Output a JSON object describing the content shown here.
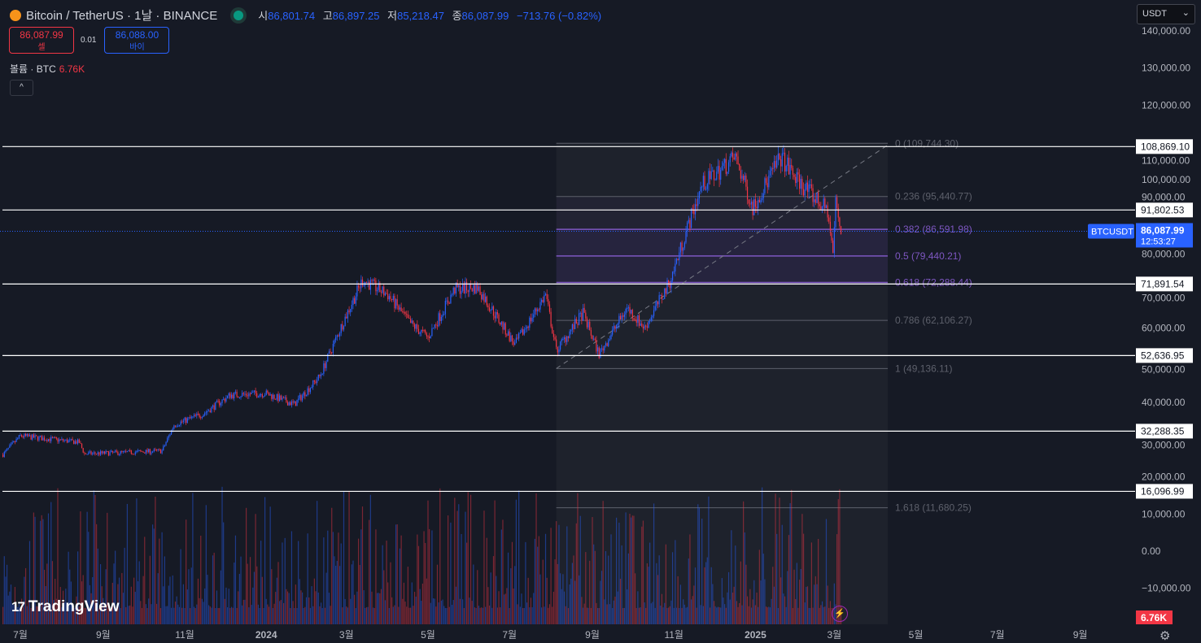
{
  "header": {
    "symbol": "Bitcoin / TetherUS · 1날 · BINANCE",
    "open_label": "시",
    "open": "86,801.74",
    "high_label": "고",
    "high": "86,897.25",
    "low_label": "저",
    "low": "85,218.47",
    "close_label": "종",
    "close": "86,087.99",
    "change": "−713.76 (−0.82%)"
  },
  "trade": {
    "sell_price": "86,087.99",
    "sell_label": "셀",
    "spread": "0.01",
    "buy_price": "86,088.00",
    "buy_label": "바이"
  },
  "volume": {
    "label": "볼륨 · BTC",
    "value": "6.76K",
    "collapse": "^"
  },
  "currency": {
    "value": "USDT",
    "chevron": "⌄"
  },
  "brand": {
    "name": "TradingView",
    "mark": "17"
  },
  "colors": {
    "up": "#2962ff",
    "down": "#f23645",
    "bg": "#161a25",
    "fib": "#7e57c2"
  },
  "icons": {
    "coin": "bitcoin-icon",
    "status": "market-open-dot",
    "bolt": "lightning-icon",
    "settings": "settings-icon"
  },
  "chart_data": {
    "type": "candlestick",
    "ylim": [
      -15000,
      145000
    ],
    "y_ticks": [
      140000,
      130000,
      120000,
      110000,
      100000,
      90000,
      80000,
      70000,
      60000,
      50000,
      40000,
      30000,
      20000,
      10000,
      0,
      -10000
    ],
    "y_tick_labels": [
      "140,000.00",
      "130,000.00",
      "120,000.00",
      "110,000.00",
      "100,000.00",
      "90,000.00",
      "80,000.00",
      "70,000.00",
      "60,000.00",
      "50,000.00",
      "40,000.00",
      "30,000.00",
      "20,000.00",
      "10,000.00",
      "0.00",
      "−10,000.00"
    ],
    "x_ticks": [
      {
        "date": "2023-07-01",
        "label": "7월"
      },
      {
        "date": "2023-09-01",
        "label": "9월"
      },
      {
        "date": "2023-11-01",
        "label": "11월"
      },
      {
        "date": "2024-01-01",
        "label": "2024"
      },
      {
        "date": "2024-03-01",
        "label": "3월"
      },
      {
        "date": "2024-05-01",
        "label": "5월"
      },
      {
        "date": "2024-07-01",
        "label": "7월"
      },
      {
        "date": "2024-09-01",
        "label": "9월"
      },
      {
        "date": "2024-11-01",
        "label": "11월"
      },
      {
        "date": "2025-01-01",
        "label": "2025"
      },
      {
        "date": "2025-03-01",
        "label": "3월"
      },
      {
        "date": "2025-05-01",
        "label": "5월"
      },
      {
        "date": "2025-07-01",
        "label": "7월"
      },
      {
        "date": "2025-09-01",
        "label": "9월"
      }
    ],
    "xlim": [
      "2023-06-18",
      "2025-10-10"
    ],
    "price_path": [
      [
        "2023-06-18",
        26000
      ],
      [
        "2023-07-01",
        31000
      ],
      [
        "2023-08-14",
        29300
      ],
      [
        "2023-08-18",
        26200
      ],
      [
        "2023-09-15",
        26500
      ],
      [
        "2023-10-15",
        27000
      ],
      [
        "2023-10-24",
        34000
      ],
      [
        "2023-11-15",
        37000
      ],
      [
        "2023-12-05",
        42000
      ],
      [
        "2023-12-31",
        42500
      ],
      [
        "2024-01-22",
        39500
      ],
      [
        "2024-02-10",
        47000
      ],
      [
        "2024-02-28",
        62000
      ],
      [
        "2024-03-13",
        73000
      ],
      [
        "2024-04-01",
        69000
      ],
      [
        "2024-04-17",
        61500
      ],
      [
        "2024-05-01",
        57500
      ],
      [
        "2024-05-21",
        70500
      ],
      [
        "2024-06-07",
        71000
      ],
      [
        "2024-07-05",
        55500
      ],
      [
        "2024-07-28",
        69000
      ],
      [
        "2024-08-05",
        54000
      ],
      [
        "2024-08-25",
        64000
      ],
      [
        "2024-09-06",
        53000
      ],
      [
        "2024-09-27",
        65500
      ],
      [
        "2024-10-10",
        60000
      ],
      [
        "2024-10-29",
        72500
      ],
      [
        "2024-11-12",
        88000
      ],
      [
        "2024-11-22",
        98500
      ],
      [
        "2024-12-17",
        106000
      ],
      [
        "2024-12-30",
        92500
      ],
      [
        "2025-01-20",
        106000
      ],
      [
        "2025-02-01",
        100000
      ],
      [
        "2025-02-24",
        91500
      ],
      [
        "2025-02-28",
        80000
      ],
      [
        "2025-03-02",
        94000
      ],
      [
        "2025-03-06",
        86088
      ]
    ],
    "horizontal_lines": [
      "108,869.10",
      "91,802.53",
      "71,891.54",
      "52,636.95",
      "32,288.35",
      "16,096.99"
    ],
    "fib_retracement": {
      "start": "2024-08-05",
      "end": "2025-04-10",
      "levels": [
        {
          "ratio": "0",
          "price": 109744.3,
          "label": "0 (109,744.30)"
        },
        {
          "ratio": "0.236",
          "price": 95440.77,
          "label": "0.236 (95,440.77)"
        },
        {
          "ratio": "0.382",
          "price": 86591.98,
          "label": "0.382 (86,591.98)"
        },
        {
          "ratio": "0.5",
          "price": 79440.21,
          "label": "0.5 (79,440.21)"
        },
        {
          "ratio": "0.618",
          "price": 72288.44,
          "label": "0.618 (72,288.44)"
        },
        {
          "ratio": "0.786",
          "price": 62106.27,
          "label": "0.786 (62,106.27)"
        },
        {
          "ratio": "1",
          "price": 49136.11,
          "label": "1 (49,136.11)"
        },
        {
          "ratio": "1.618",
          "price": 11680.25,
          "label": "1.618 (11,680.25)"
        }
      ]
    },
    "last_price": {
      "symbol": "BTCUSDT",
      "price": "86,087.99",
      "countdown": "12:53:27"
    },
    "volume_last": "6.76K"
  }
}
